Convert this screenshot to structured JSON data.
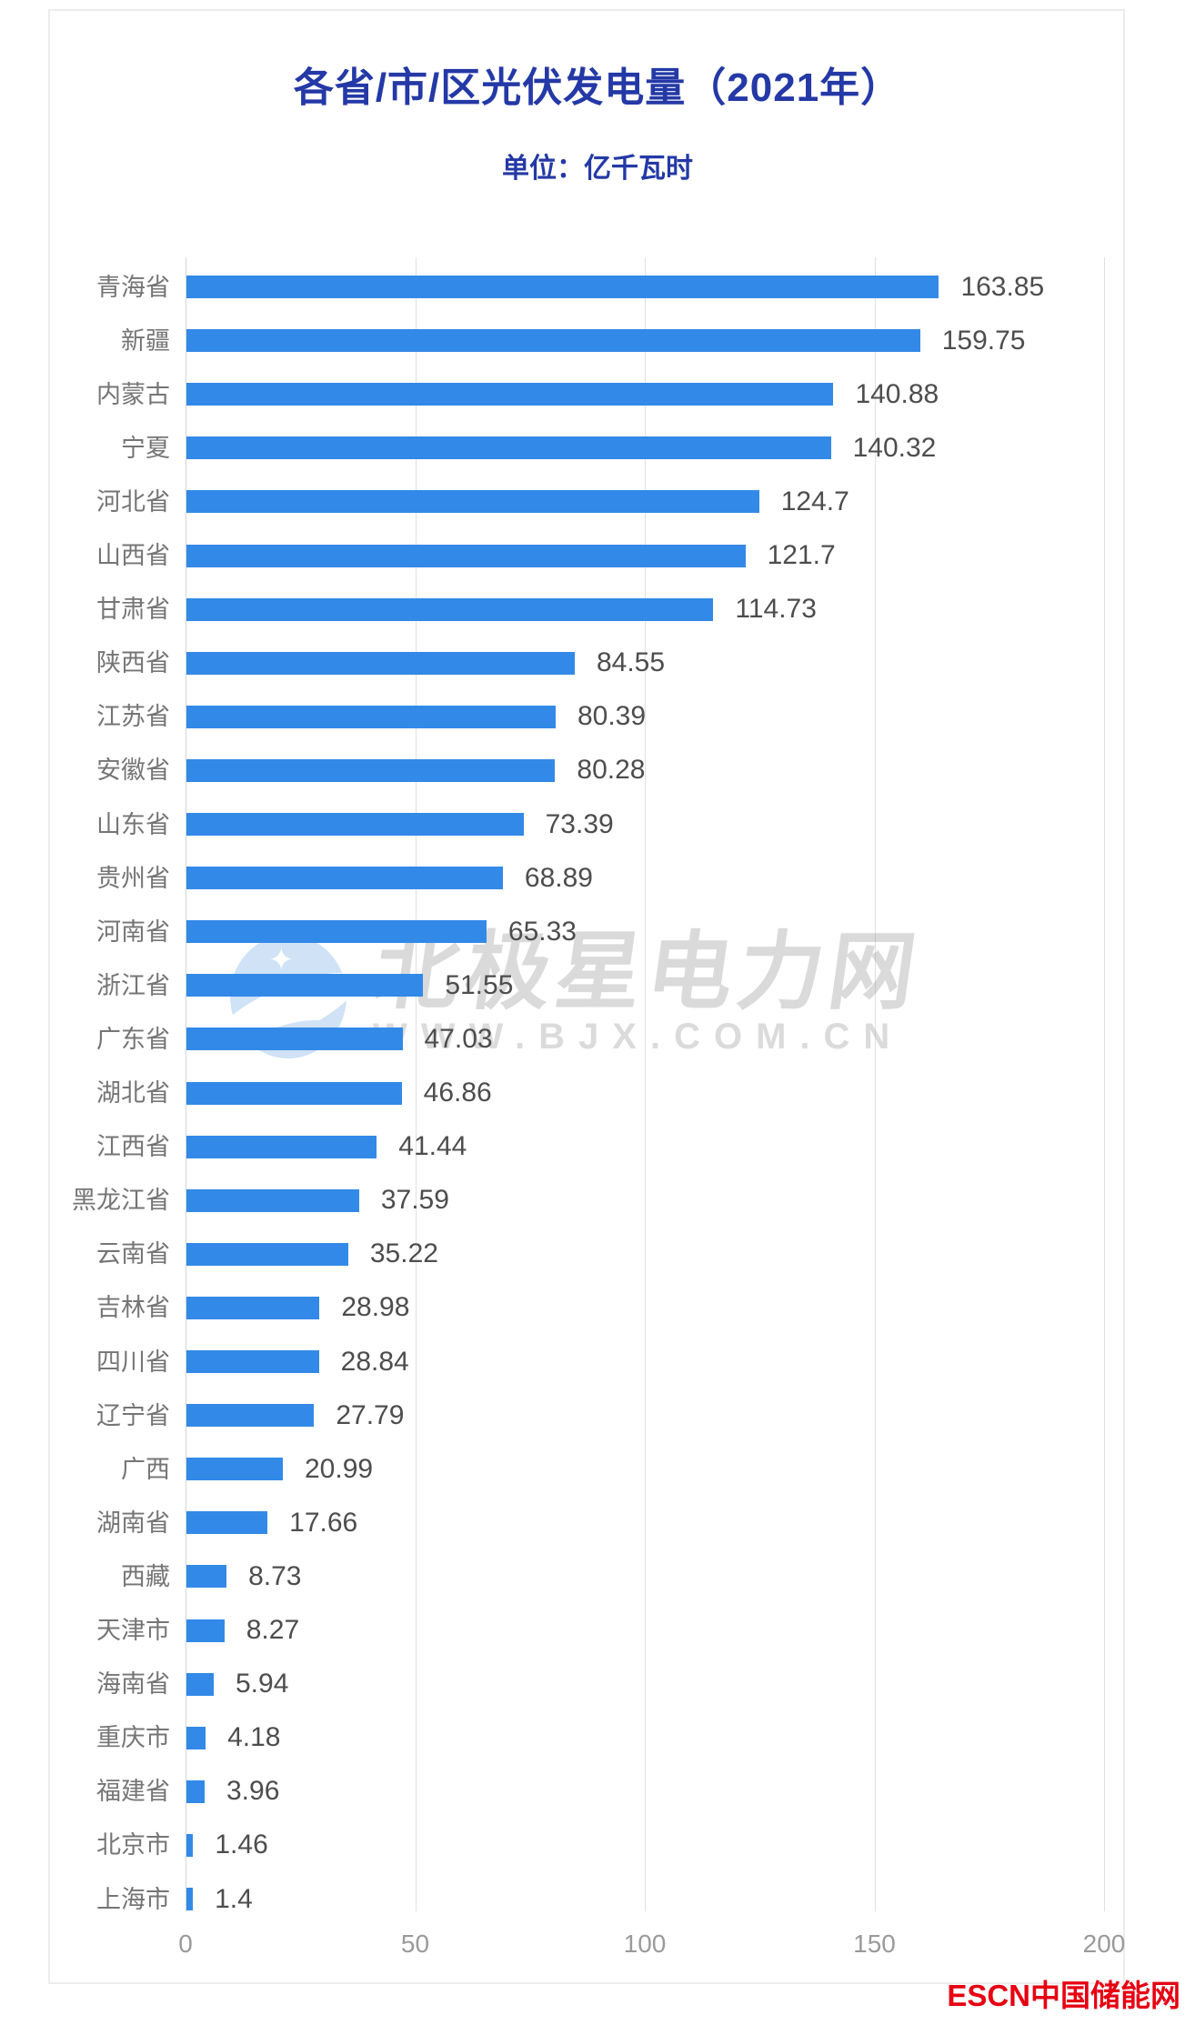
{
  "page": {
    "title": "各省/市/区光伏发电量（2021年）",
    "subtitle": "单位：亿千瓦时",
    "title_color": "#2439a6",
    "bar_color": "#3389e8",
    "footer_logo": "ESCN中国储能网",
    "footer_logo_color": "#e60012"
  },
  "watermark": {
    "logo_icon": "polaris-star-moon-icon",
    "logo_text": "北极星电力网",
    "url_text": "WWW.BJX.COM.CN"
  },
  "chart_data": {
    "type": "bar",
    "orientation": "horizontal",
    "title": "各省/市/区光伏发电量（2021年）",
    "unit": "亿千瓦时",
    "xlabel": "",
    "ylabel": "",
    "xlim": [
      0,
      200
    ],
    "x_ticks": [
      0,
      50,
      100,
      150,
      200
    ],
    "grid": true,
    "categories": [
      "青海省",
      "新疆",
      "内蒙古",
      "宁夏",
      "河北省",
      "山西省",
      "甘肃省",
      "陕西省",
      "江苏省",
      "安徽省",
      "山东省",
      "贵州省",
      "河南省",
      "浙江省",
      "广东省",
      "湖北省",
      "江西省",
      "黑龙江省",
      "云南省",
      "吉林省",
      "四川省",
      "辽宁省",
      "广西",
      "湖南省",
      "西藏",
      "天津市",
      "海南省",
      "重庆市",
      "福建省",
      "北京市",
      "上海市"
    ],
    "values": [
      163.85,
      159.75,
      140.88,
      140.32,
      124.7,
      121.7,
      114.73,
      84.55,
      80.39,
      80.28,
      73.39,
      68.89,
      65.33,
      51.55,
      47.03,
      46.86,
      41.44,
      37.59,
      35.22,
      28.98,
      28.84,
      27.79,
      20.99,
      17.66,
      8.73,
      8.27,
      5.94,
      4.18,
      3.96,
      1.46,
      1.4
    ]
  }
}
